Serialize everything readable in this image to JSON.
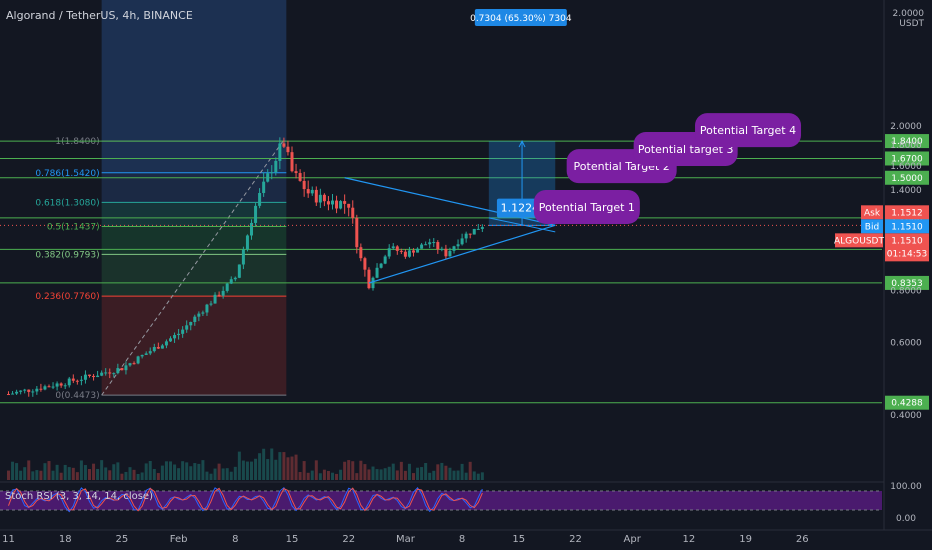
{
  "header": {
    "symbol_title": "Algorand / TetherUS, 4h, BINANCE",
    "top_price": "2.0000",
    "currency": "USDT"
  },
  "colors": {
    "background": "#131722",
    "up": "#26a69a",
    "down": "#ef5350",
    "horizontal_line": "#4caf50",
    "triangle": "#2196f3",
    "callout": "#7b1fa2",
    "stoch_k": "#2962ff",
    "stoch_d": "#ef5350",
    "stoch_band": "#4a1a6e"
  },
  "chart_data": {
    "type": "candlestick",
    "title": "Algorand / TetherUS, 4h, BINANCE",
    "exchange": "BINANCE",
    "interval": "4h",
    "scale": "log",
    "ylim": [
      0.37,
      2.0
    ],
    "x_ticks": [
      "11",
      "18",
      "25",
      "Feb",
      "8",
      "15",
      "22",
      "Mar",
      "8",
      "15",
      "22",
      "Apr",
      "12",
      "19",
      "26"
    ],
    "y_ticks": [
      "2.0000",
      "1.8000",
      "1.6000",
      "1.4000",
      "1.2000",
      "1.0000",
      "0.8000",
      "0.6000",
      "0.4000"
    ],
    "price_path": [
      {
        "x": "11",
        "y": 0.45
      },
      {
        "x": "18",
        "y": 0.48
      },
      {
        "x": "25",
        "y": 0.52
      },
      {
        "x": "Feb",
        "y": 0.63
      },
      {
        "x": "8",
        "y": 0.86
      },
      {
        "x": "10",
        "y": 1.3
      },
      {
        "x": "11",
        "y": 1.84
      },
      {
        "x": "15",
        "y": 1.35
      },
      {
        "x": "20",
        "y": 1.3
      },
      {
        "x": "23",
        "y": 0.84
      },
      {
        "x": "Mar",
        "y": 1.05
      },
      {
        "x": "5",
        "y": 1.0
      },
      {
        "x": "9",
        "y": 1.151
      }
    ],
    "horizontal_levels": [
      "1.8400",
      "1.6700",
      "1.5000",
      "1.2000",
      "1.0066",
      "0.8353",
      "0.4288"
    ],
    "fibonacci": [
      {
        "label": "1(1.8400)",
        "level": 1.84
      },
      {
        "label": "0.786(1.5420)",
        "level": 1.542
      },
      {
        "label": "0.618(1.3080)",
        "level": 1.308
      },
      {
        "label": "0.5(1.1437)",
        "level": 1.1437
      },
      {
        "label": "0.382(0.9793)",
        "level": 0.9793
      },
      {
        "label": "0.236(0.7760)",
        "level": 0.776
      },
      {
        "label": "0(0.4473)",
        "level": 0.4473
      }
    ],
    "annotations": [
      "Potential Target 1",
      "Potential Target 2",
      "Potential target 3",
      "Potential Target 4"
    ],
    "entry_label": "1.1224",
    "projection_label": "0.7304 (65.30%) 7304",
    "ask": {
      "label": "Ask",
      "value": "1.1512"
    },
    "bid": {
      "label": "Bid",
      "value": "1.1510"
    },
    "last": {
      "label": "ALGOUSDT",
      "value": "1.1510",
      "countdown": "01:14:53"
    },
    "indicator": {
      "name": "Stoch RSI (3, 3, 14, 14, close)",
      "ticks": [
        "100.00",
        "0.00"
      ]
    }
  }
}
